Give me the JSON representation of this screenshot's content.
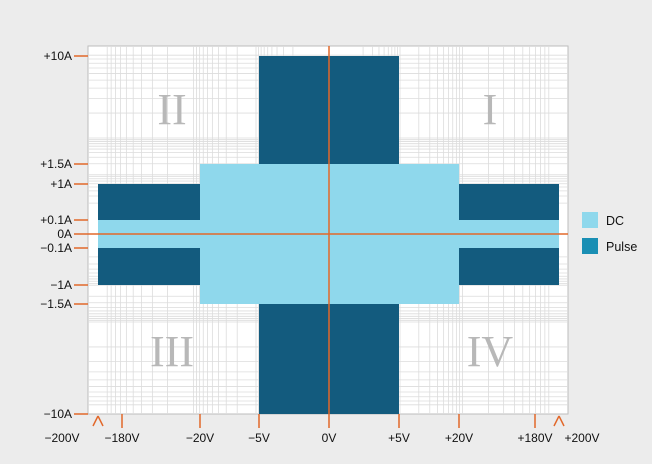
{
  "chart_data": {
    "type": "area",
    "title": "",
    "xlabel": "",
    "ylabel": "",
    "x_ticks": [
      {
        "value": -200,
        "label": "−200V"
      },
      {
        "value": -180,
        "label": "−180V"
      },
      {
        "value": -20,
        "label": "−20V"
      },
      {
        "value": -5,
        "label": "−5V"
      },
      {
        "value": 0,
        "label": "0V"
      },
      {
        "value": 5,
        "label": "+5V"
      },
      {
        "value": 20,
        "label": "+20V"
      },
      {
        "value": 180,
        "label": "+180V"
      },
      {
        "value": 200,
        "label": "+200V"
      }
    ],
    "y_ticks": [
      {
        "value": 10,
        "label": "+10A"
      },
      {
        "value": 1.5,
        "label": "+1.5A"
      },
      {
        "value": 1,
        "label": "+1A"
      },
      {
        "value": 0.1,
        "label": "+0.1A"
      },
      {
        "value": 0,
        "label": "0A"
      },
      {
        "value": -0.1,
        "label": "−0.1A"
      },
      {
        "value": -1,
        "label": "−1A"
      },
      {
        "value": -1.5,
        "label": "−1.5A"
      },
      {
        "value": -10,
        "label": "−10A"
      }
    ],
    "xlim": [
      -200,
      200
    ],
    "ylim": [
      -10,
      10
    ],
    "grid": true,
    "quadrant_labels": [
      {
        "label": "I",
        "x_sign": 1,
        "y_sign": 1
      },
      {
        "label": "II",
        "x_sign": -1,
        "y_sign": 1
      },
      {
        "label": "III",
        "x_sign": -1,
        "y_sign": -1
      },
      {
        "label": "IV",
        "x_sign": 1,
        "y_sign": -1
      }
    ],
    "series": [
      {
        "name": "Pulse",
        "color": "#135b7e",
        "regions": [
          {
            "x": [
              -5,
              5
            ],
            "y": [
              -10,
              10
            ]
          },
          {
            "x": [
              -180,
              180
            ],
            "y": [
              -1,
              1
            ]
          }
        ]
      },
      {
        "name": "DC",
        "color": "#8fd8ec",
        "regions": [
          {
            "x": [
              -20,
              20
            ],
            "y": [
              -1.5,
              1.5
            ]
          },
          {
            "x": [
              -180,
              180
            ],
            "y": [
              -0.1,
              0.1
            ]
          }
        ]
      }
    ],
    "legend": {
      "placement": "right",
      "entries": [
        {
          "name": "DC",
          "color": "#8fd8ec"
        },
        {
          "name": "Pulse",
          "color": "#1a8fb4"
        }
      ]
    },
    "axis_color": "#e2682a"
  }
}
